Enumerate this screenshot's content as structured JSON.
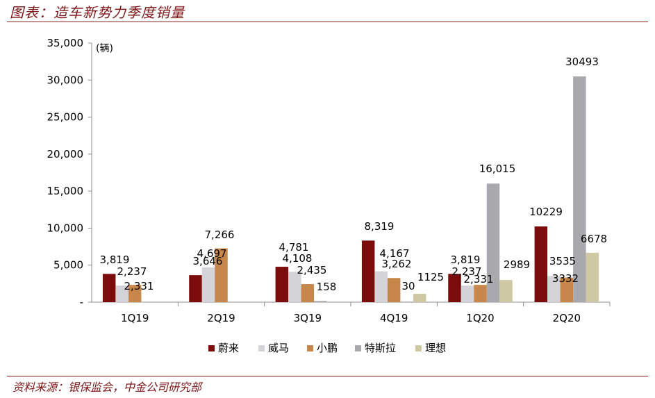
{
  "header": {
    "title": "图表：造车新势力季度销量"
  },
  "footer": {
    "source": "资料来源：银保监会，中金公司研究部"
  },
  "chart_data": {
    "type": "bar",
    "title": "图表：造车新势力季度销量",
    "unit_label": "(辆)",
    "categories": [
      "1Q19",
      "2Q19",
      "3Q19",
      "4Q19",
      "1Q20",
      "2Q20"
    ],
    "ylim": [
      0,
      35000
    ],
    "yticks": [
      0,
      5000,
      10000,
      15000,
      20000,
      25000,
      30000,
      35000
    ],
    "ytick_labels": [
      "-",
      "5,000",
      "10,000",
      "15,000",
      "20,000",
      "25,000",
      "30,000",
      "35,000"
    ],
    "grid": false,
    "legend_position": "bottom",
    "series": [
      {
        "name": "蔚来",
        "color": "#7B0C0C",
        "values": [
          3819,
          3646,
          4781,
          8319,
          3819,
          10229
        ],
        "labels": [
          "3,819",
          "3,646",
          "4,781",
          "8,319",
          "3,819",
          "10229"
        ]
      },
      {
        "name": "威马",
        "color": "#D4D3D8",
        "values": [
          2237,
          4697,
          4108,
          4167,
          2237,
          3535
        ],
        "labels": [
          "2,237",
          "4,697",
          "4,108",
          "4,167",
          "2,237",
          "3535"
        ]
      },
      {
        "name": "小鹏",
        "color": "#C8874A",
        "values": [
          2331,
          7266,
          2435,
          3262,
          2331,
          3332
        ],
        "labels": [
          "2,331",
          "7,266",
          "2,435",
          "3,262",
          "2,331",
          "3332"
        ]
      },
      {
        "name": "特斯拉",
        "color": "#A9A8AD",
        "values": [
          null,
          null,
          158,
          30,
          16015,
          30493
        ],
        "labels": [
          "",
          "",
          "158",
          "30",
          "16,015",
          "30493"
        ]
      },
      {
        "name": "理想",
        "color": "#CFC8A4",
        "values": [
          null,
          null,
          null,
          1125,
          2989,
          6678
        ],
        "labels": [
          "",
          "",
          "",
          "1125",
          "2989",
          "6678"
        ]
      }
    ]
  }
}
